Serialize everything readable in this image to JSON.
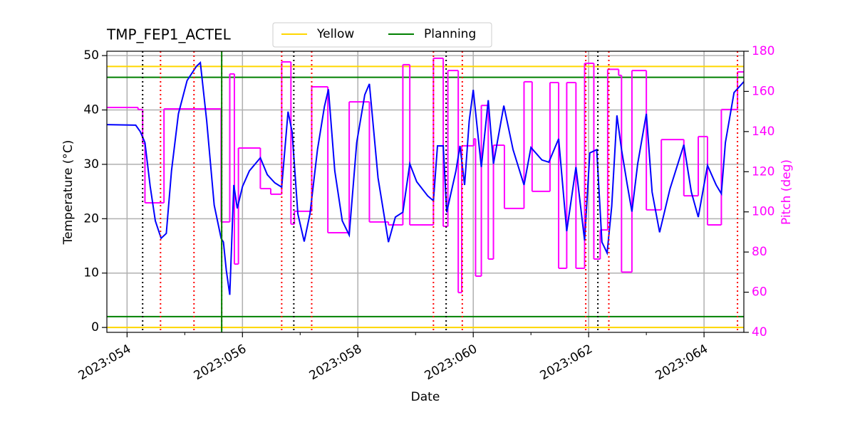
{
  "chart_data": {
    "type": "line",
    "title": "TMP_FEP1_ACTEL",
    "xlabel": "Date",
    "ylabel": "Temperature (°C)",
    "y2label": "Pitch (deg)",
    "xlim": [
      53.65,
      64.69
    ],
    "ylim": [
      -0.9,
      50.8
    ],
    "y2lim": [
      40,
      180
    ],
    "xticks": [
      {
        "value": 54,
        "label": "2023:054"
      },
      {
        "value": 56,
        "label": "2023:056"
      },
      {
        "value": 58,
        "label": "2023:058"
      },
      {
        "value": 60,
        "label": "2023:060"
      },
      {
        "value": 62,
        "label": "2023:062"
      },
      {
        "value": 64,
        "label": "2023:064"
      }
    ],
    "xminorticks": [
      55,
      57,
      59,
      61,
      63
    ],
    "yticks": [
      0,
      10,
      20,
      30,
      40,
      50
    ],
    "y2ticks": [
      40,
      60,
      80,
      100,
      120,
      140,
      160,
      180
    ],
    "grid": true,
    "y2color": "#ff00ff",
    "series": [
      {
        "color": "#0000ff",
        "x": [
          53.65,
          54.15,
          54.23,
          54.31,
          54.4,
          54.49,
          54.59,
          54.68,
          54.77,
          54.89,
          55.04,
          55.2,
          55.27,
          55.38,
          55.51,
          55.63,
          55.67,
          55.72,
          55.78,
          55.85,
          55.91,
          56.0,
          56.12,
          56.31,
          56.43,
          56.56,
          56.68,
          56.79,
          56.86,
          56.96,
          57.07,
          57.17,
          57.3,
          57.42,
          57.49,
          57.6,
          57.73,
          57.85,
          57.98,
          58.12,
          58.2,
          58.35,
          58.53,
          58.65,
          58.78,
          58.9,
          59.02,
          59.21,
          59.31,
          59.38,
          59.48,
          59.54,
          59.7,
          59.77,
          59.85,
          59.93,
          60.0,
          60.14,
          60.26,
          60.35,
          60.53,
          60.69,
          60.88,
          61.0,
          61.19,
          61.31,
          61.48,
          61.62,
          61.78,
          61.93,
          62.02,
          62.14,
          62.23,
          62.32,
          62.4,
          62.49,
          62.57,
          62.67,
          62.75,
          62.85,
          63.0,
          63.1,
          63.23,
          63.41,
          63.65,
          63.78,
          63.9,
          64.06,
          64.21,
          64.3,
          64.37,
          64.52,
          64.69
        ],
        "values": [
          37.3,
          37.2,
          36,
          34,
          26,
          19.6,
          16.4,
          17.3,
          28.8,
          39.3,
          45.4,
          48,
          48.7,
          38,
          22.5,
          16.4,
          15.7,
          10.5,
          6.0,
          26.2,
          21.9,
          25.9,
          28.8,
          31.2,
          28.1,
          26.6,
          25.8,
          39.7,
          36,
          20.9,
          15.8,
          20.9,
          32.7,
          40.6,
          43.8,
          28.8,
          19.6,
          17,
          34,
          42.8,
          44.8,
          27.5,
          15.7,
          20.3,
          21.2,
          30.1,
          26.8,
          24.2,
          23.3,
          33.4,
          33.4,
          21.2,
          28.8,
          33.4,
          26.2,
          38,
          43.7,
          29.5,
          41.8,
          30.1,
          40.8,
          32.7,
          26.2,
          33.1,
          30.8,
          30.4,
          34.7,
          17.7,
          29.5,
          16,
          32.1,
          32.7,
          15.7,
          13.7,
          22.3,
          39,
          32.7,
          26.2,
          21.3,
          30.1,
          39.3,
          24.9,
          17.5,
          25.5,
          33.6,
          24.9,
          20.3,
          29.8,
          26.2,
          24.6,
          34,
          43.2,
          45.2
        ]
      },
      {
        "color": "#ff00ff",
        "axis": "y2",
        "drawstyle": "steps-post",
        "x": [
          53.65,
          54.19,
          54.27,
          54.31,
          54.64,
          55.63,
          55.78,
          55.86,
          55.93,
          56.31,
          56.49,
          56.68,
          56.84,
          56.9,
          57.2,
          57.48,
          57.85,
          58.2,
          58.53,
          58.78,
          58.9,
          59.31,
          59.48,
          59.56,
          59.74,
          59.8,
          60.01,
          60.04,
          60.14,
          60.26,
          60.35,
          60.54,
          60.88,
          61.02,
          61.33,
          61.48,
          61.62,
          61.78,
          61.93,
          62.09,
          62.2,
          62.33,
          62.52,
          62.57,
          62.75,
          63.0,
          63.26,
          63.65,
          63.9,
          64.06,
          64.3,
          64.58
        ],
        "values": [
          152,
          151,
          134,
          104.5,
          151.3,
          95,
          168.7,
          74,
          131.8,
          111.6,
          108.8,
          174.7,
          93.9,
          100.3,
          162.3,
          89.6,
          154.8,
          95,
          93.5,
          173.3,
          93.5,
          176.5,
          92.8,
          170.4,
          59.8,
          132.9,
          136.4,
          68,
          153,
          76.5,
          133.2,
          101.7,
          164.8,
          110.2,
          164.4,
          71.9,
          164.4,
          71.9,
          174,
          76.5,
          91,
          171,
          168,
          70,
          170.4,
          101,
          136,
          108,
          137.5,
          93.5,
          151,
          169.7
        ]
      }
    ],
    "hlines": [
      {
        "name": "Yellow",
        "color": "#ffd700",
        "values": [
          0,
          48
        ]
      },
      {
        "name": "Planning",
        "color": "#008000",
        "values": [
          2,
          46
        ]
      }
    ],
    "vlines": [
      {
        "color": "#000000",
        "style": "dotted",
        "x": [
          54.27,
          56.89,
          59.53,
          62.16
        ]
      },
      {
        "color": "#ff0000",
        "style": "dotted",
        "x": [
          54.58,
          55.16,
          55.64,
          56.68,
          57.2,
          59.31,
          59.81,
          61.95,
          62.35,
          64.58
        ]
      },
      {
        "color": "#008000",
        "style": "solid",
        "x": [
          55.64
        ]
      }
    ]
  }
}
